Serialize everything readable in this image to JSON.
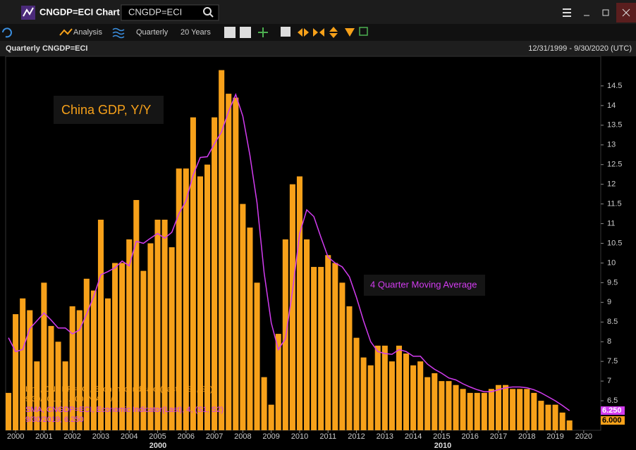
{
  "window": {
    "title": "CNGDP=ECI Chart",
    "search": "CNGDP=ECI"
  },
  "toolbar": {
    "analysis": "Analysis",
    "interval": "Quarterly",
    "range": "20 Years"
  },
  "header": {
    "title": "Quarterly CNGDP=ECI",
    "date_range": "12/31/1999 - 9/30/2020 (UTC)"
  },
  "chart_data": {
    "type": "combo",
    "annotations": [
      "China GDP, Y/Y",
      "4 Quarter Moving Average"
    ],
    "x": [
      1999.75,
      2000,
      2000.25,
      2000.5,
      2000.75,
      2001,
      2001.25,
      2001.5,
      2001.75,
      2002,
      2002.25,
      2002.5,
      2002.75,
      2003,
      2003.25,
      2003.5,
      2003.75,
      2004,
      2004.25,
      2004.5,
      2004.75,
      2005,
      2005.25,
      2005.5,
      2005.75,
      2006,
      2006.25,
      2006.5,
      2006.75,
      2007,
      2007.25,
      2007.5,
      2007.75,
      2008,
      2008.25,
      2008.5,
      2008.75,
      2009,
      2009.25,
      2009.5,
      2009.75,
      2010,
      2010.25,
      2010.5,
      2010.75,
      2011,
      2011.25,
      2011.5,
      2011.75,
      2012,
      2012.25,
      2012.5,
      2012.75,
      2013,
      2013.25,
      2013.5,
      2013.75,
      2014,
      2014.25,
      2014.5,
      2014.75,
      2015,
      2015.25,
      2015.5,
      2015.75,
      2016,
      2016.25,
      2016.5,
      2016.75,
      2017,
      2017.25,
      2017.5,
      2017.75,
      2018,
      2018.25,
      2018.5,
      2018.75,
      2019,
      2019.25,
      2019.5
    ],
    "series": [
      {
        "name": "Line, CNGDP=ECI, Economic Indicator(Last), (S1, S2)",
        "info": "9/30/2019, 6.000, N/A, N/A",
        "type": "bar",
        "color": "#f7a11a",
        "last_label": "6.000",
        "values": [
          6.7,
          8.7,
          9.1,
          8.8,
          7.5,
          9.5,
          8.4,
          8.0,
          7.5,
          8.9,
          8.8,
          9.6,
          9.3,
          11.1,
          9.1,
          10.0,
          10.0,
          10.6,
          11.6,
          9.8,
          10.5,
          11.1,
          11.1,
          10.4,
          12.4,
          12.4,
          13.7,
          12.2,
          12.5,
          13.7,
          14.9,
          14.3,
          14.2,
          11.5,
          10.9,
          9.5,
          7.1,
          6.4,
          8.2,
          10.6,
          12.0,
          12.2,
          10.6,
          9.9,
          9.9,
          10.2,
          10.0,
          9.5,
          8.9,
          8.1,
          7.6,
          7.4,
          7.9,
          7.9,
          7.5,
          7.9,
          7.7,
          7.4,
          7.5,
          7.1,
          7.2,
          7.0,
          7.0,
          6.9,
          6.8,
          6.7,
          6.7,
          6.7,
          6.8,
          6.9,
          6.9,
          6.8,
          6.8,
          6.8,
          6.7,
          6.5,
          6.4,
          6.4,
          6.2,
          6.0
        ]
      },
      {
        "name": "SMA, CNGDP=ECI, Economic Indicator(Last), 4, (S1, S2)",
        "info": "9/30/2019, 6.250",
        "type": "line",
        "color": "#d23cf0",
        "last_label": "6.250",
        "values": [
          8.1,
          7.75,
          7.8,
          8.33,
          8.53,
          8.73,
          8.55,
          8.35,
          8.35,
          8.2,
          8.3,
          8.7,
          9.15,
          9.7,
          9.78,
          9.88,
          10.05,
          9.93,
          10.55,
          10.5,
          10.63,
          10.75,
          10.63,
          10.78,
          11.25,
          11.58,
          12.23,
          12.68,
          12.7,
          13.03,
          13.33,
          13.85,
          14.28,
          13.73,
          12.73,
          11.53,
          9.75,
          8.48,
          7.8,
          8.08,
          9.3,
          10.75,
          11.35,
          11.18,
          10.65,
          10.15,
          10.0,
          9.9,
          9.65,
          9.13,
          8.53,
          8.0,
          7.75,
          7.7,
          7.68,
          7.8,
          7.75,
          7.63,
          7.63,
          7.43,
          7.3,
          7.2,
          7.08,
          7.03,
          6.93,
          6.85,
          6.78,
          6.73,
          6.73,
          6.78,
          6.83,
          6.85,
          6.85,
          6.83,
          6.78,
          6.7,
          6.6,
          6.5,
          6.38,
          6.25
        ]
      }
    ],
    "xlim": [
      1999.65,
      2020.6
    ],
    "xticks": [
      2000,
      2001,
      2002,
      2003,
      2004,
      2005,
      2006,
      2007,
      2008,
      2009,
      2010,
      2011,
      2012,
      2013,
      2014,
      2015,
      2016,
      2017,
      2018,
      2019,
      2020
    ],
    "x_groups": [
      "2000",
      "2010"
    ],
    "ylim": [
      5.75,
      15.25
    ],
    "yticks": [
      6.5,
      7,
      7.5,
      8,
      8.5,
      9,
      9.5,
      10,
      10.5,
      11,
      11.5,
      12,
      12.5,
      13,
      13.5,
      14,
      14.5
    ],
    "grid": false
  }
}
